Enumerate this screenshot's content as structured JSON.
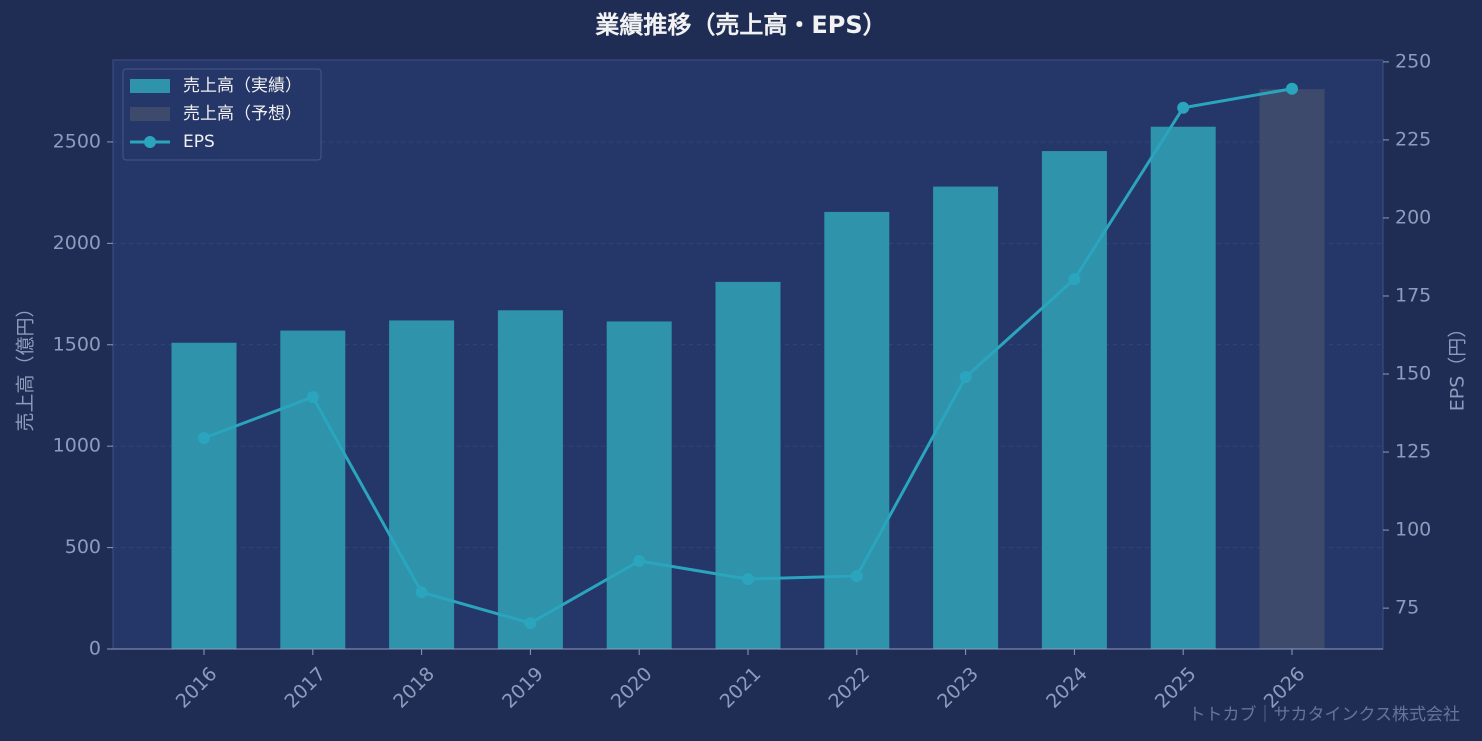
{
  "chart_data": {
    "type": "bar-line",
    "title": "業績推移（売上高・EPS）",
    "ylabel": "売上高（億円）",
    "y2label": "EPS（円）",
    "categories": [
      "2016",
      "2017",
      "2018",
      "2019",
      "2020",
      "2021",
      "2022",
      "2023",
      "2024",
      "2025",
      "2026"
    ],
    "series": [
      {
        "name": "売上高（実績）",
        "color": "#2e93ab",
        "type": "bar",
        "values": [
          1510,
          1570,
          1620,
          1670,
          1615,
          1810,
          2155,
          2280,
          2455,
          2575,
          null
        ]
      },
      {
        "name": "売上高（予想）",
        "color": "#3d4a6b",
        "type": "bar",
        "values": [
          null,
          null,
          null,
          null,
          null,
          null,
          null,
          null,
          null,
          null,
          2760
        ]
      },
      {
        "name": "EPS",
        "color": "#2aa5bd",
        "type": "line",
        "axis": "y2",
        "values": [
          129.5,
          142.6,
          80.1,
          70.2,
          90.1,
          84.3,
          85.3,
          149,
          180.4,
          235.3,
          241.4
        ]
      }
    ],
    "ylim": [
      0,
      2904
    ],
    "yticks": [
      0,
      500,
      1000,
      1500,
      2000,
      2500
    ],
    "y2lim": [
      61.9,
      250.6
    ],
    "y2ticks": [
      75,
      100,
      125,
      150,
      175,
      200,
      225,
      250
    ],
    "grid": true,
    "legend": "upper left",
    "source": "トトカブ｜サカタインクス株式会社"
  }
}
